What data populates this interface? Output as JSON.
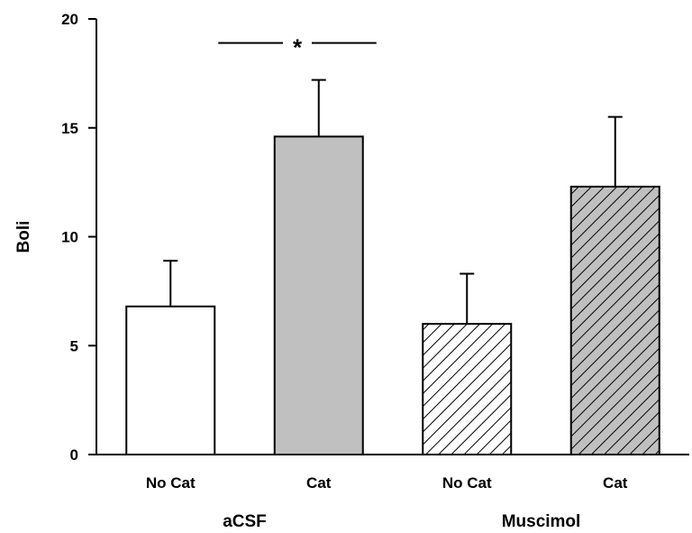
{
  "chart_data": {
    "type": "bar",
    "title": "",
    "ylabel": "Boli",
    "xlabel": "",
    "ylim": [
      0,
      20
    ],
    "yticks": [
      0,
      5,
      10,
      15,
      20
    ],
    "grid": false,
    "legend": "none",
    "categories": [
      "No Cat",
      "Cat",
      "No Cat",
      "Cat"
    ],
    "groups": [
      {
        "label": "aCSF",
        "categories": [
          0,
          1
        ]
      },
      {
        "label": "Muscimol",
        "categories": [
          2,
          3
        ]
      }
    ],
    "values": [
      6.8,
      14.6,
      6.0,
      12.3
    ],
    "errors": [
      2.1,
      2.6,
      2.3,
      3.2
    ],
    "fills": [
      "white",
      "gray",
      "white-hatched",
      "gray-hatched"
    ],
    "colors": {
      "gray": "#c0c0c0",
      "white": "#ffffff",
      "line": "#000000"
    },
    "significance": [
      {
        "between": [
          0,
          1
        ],
        "value": 18.9,
        "label": "*"
      }
    ]
  }
}
